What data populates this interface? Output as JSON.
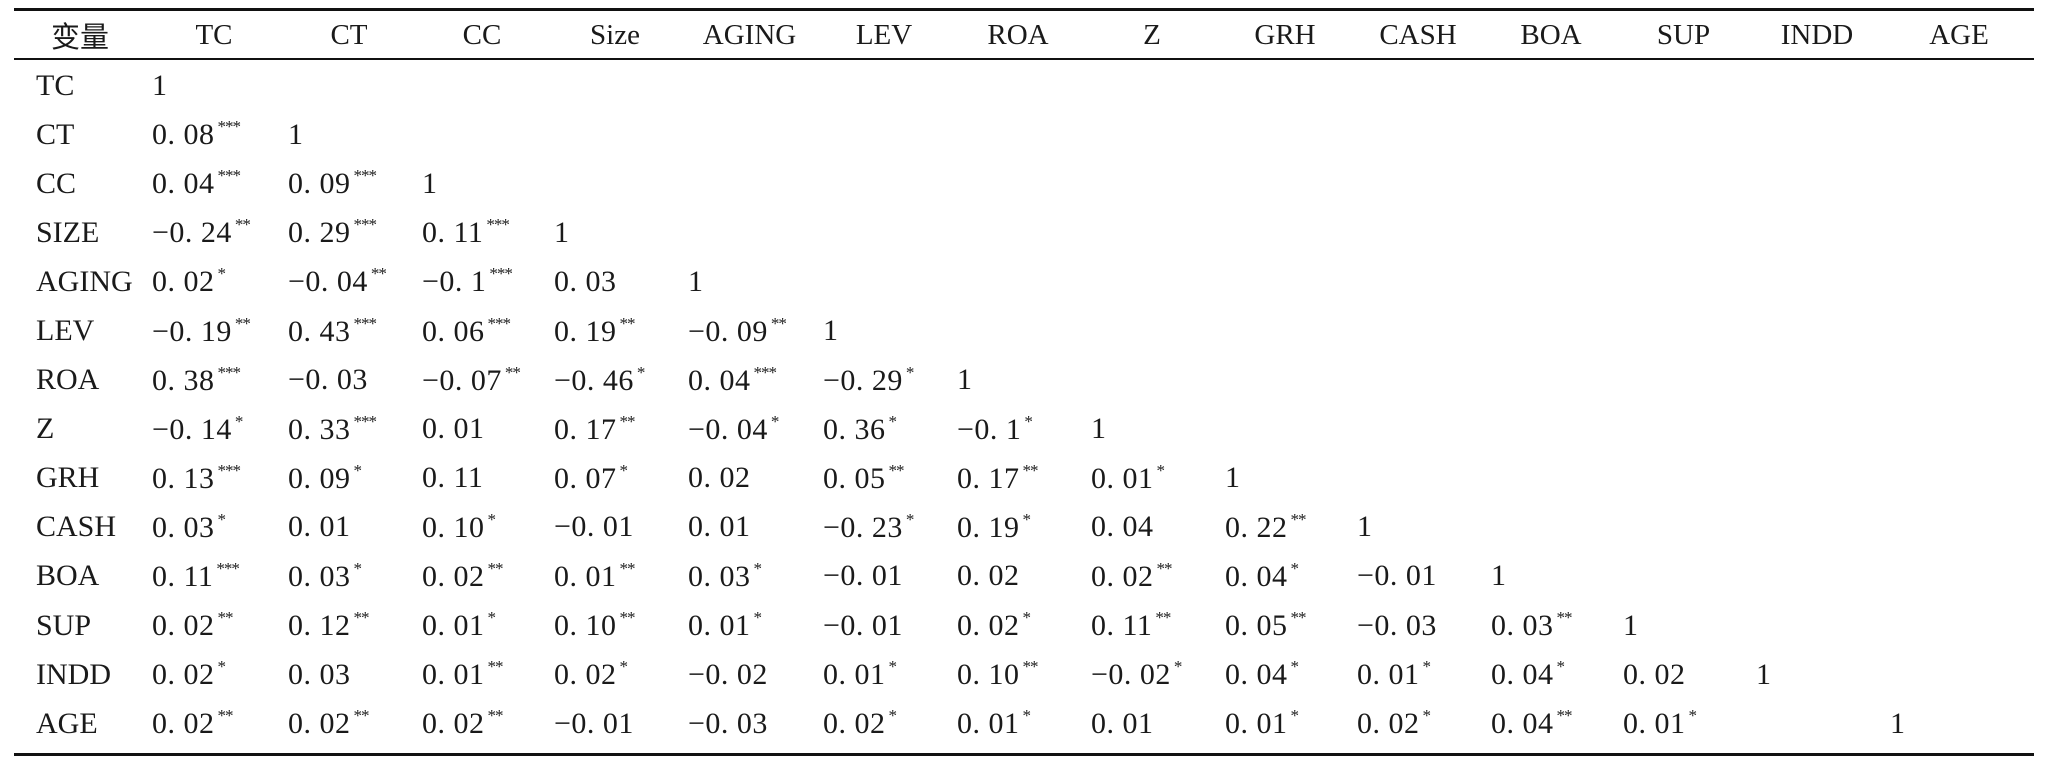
{
  "table": {
    "headers": [
      "变量",
      "TC",
      "CT",
      "CC",
      "Size",
      "AGING",
      "LEV",
      "ROA",
      "Z",
      "GRH",
      "CASH",
      "BOA",
      "SUP",
      "INDD",
      "AGE"
    ],
    "rows": [
      {
        "label": "TC",
        "cells": [
          {
            "v": "1",
            "s": ""
          }
        ]
      },
      {
        "label": "CT",
        "cells": [
          {
            "v": "0. 08",
            "s": "***"
          },
          {
            "v": "1",
            "s": ""
          }
        ]
      },
      {
        "label": "CC",
        "cells": [
          {
            "v": "0. 04",
            "s": "***"
          },
          {
            "v": "0. 09",
            "s": "***"
          },
          {
            "v": "1",
            "s": ""
          }
        ]
      },
      {
        "label": "SIZE",
        "cells": [
          {
            "v": "−0. 24",
            "s": "**"
          },
          {
            "v": "0. 29",
            "s": "***"
          },
          {
            "v": "0. 11",
            "s": "***"
          },
          {
            "v": "1",
            "s": ""
          }
        ]
      },
      {
        "label": "AGING",
        "cells": [
          {
            "v": "0. 02",
            "s": "*"
          },
          {
            "v": "−0. 04",
            "s": "**"
          },
          {
            "v": "−0. 1",
            "s": "***"
          },
          {
            "v": "0. 03",
            "s": ""
          },
          {
            "v": "1",
            "s": ""
          }
        ]
      },
      {
        "label": "LEV",
        "cells": [
          {
            "v": "−0. 19",
            "s": "**"
          },
          {
            "v": "0. 43",
            "s": "***"
          },
          {
            "v": "0. 06",
            "s": "***"
          },
          {
            "v": "0. 19",
            "s": "**"
          },
          {
            "v": "−0. 09",
            "s": "**"
          },
          {
            "v": "1",
            "s": ""
          }
        ]
      },
      {
        "label": "ROA",
        "cells": [
          {
            "v": "0. 38",
            "s": "***"
          },
          {
            "v": "−0. 03",
            "s": ""
          },
          {
            "v": "−0. 07",
            "s": "**"
          },
          {
            "v": "−0. 46",
            "s": "*"
          },
          {
            "v": "0. 04",
            "s": "***"
          },
          {
            "v": "−0. 29",
            "s": "*"
          },
          {
            "v": "1",
            "s": ""
          }
        ]
      },
      {
        "label": "Z",
        "cells": [
          {
            "v": "−0. 14",
            "s": "*"
          },
          {
            "v": "0. 33",
            "s": "***"
          },
          {
            "v": "0. 01",
            "s": ""
          },
          {
            "v": "0. 17",
            "s": "**"
          },
          {
            "v": "−0. 04",
            "s": "*"
          },
          {
            "v": "0. 36",
            "s": "*"
          },
          {
            "v": "−0. 1",
            "s": "*"
          },
          {
            "v": "1",
            "s": ""
          }
        ]
      },
      {
        "label": "GRH",
        "cells": [
          {
            "v": "0. 13",
            "s": "***"
          },
          {
            "v": "0. 09",
            "s": "*"
          },
          {
            "v": "0. 11",
            "s": ""
          },
          {
            "v": "0. 07",
            "s": "*"
          },
          {
            "v": "0. 02",
            "s": ""
          },
          {
            "v": "0. 05",
            "s": "**"
          },
          {
            "v": "0. 17",
            "s": "**"
          },
          {
            "v": "0. 01",
            "s": "*"
          },
          {
            "v": "1",
            "s": ""
          }
        ]
      },
      {
        "label": "CASH",
        "cells": [
          {
            "v": "0. 03",
            "s": "*"
          },
          {
            "v": "0. 01",
            "s": ""
          },
          {
            "v": "0. 10",
            "s": "*"
          },
          {
            "v": "−0. 01",
            "s": ""
          },
          {
            "v": "0. 01",
            "s": ""
          },
          {
            "v": "−0. 23",
            "s": "*"
          },
          {
            "v": "0. 19",
            "s": "*"
          },
          {
            "v": "0. 04",
            "s": ""
          },
          {
            "v": "0. 22",
            "s": "**"
          },
          {
            "v": "1",
            "s": ""
          }
        ]
      },
      {
        "label": "BOA",
        "cells": [
          {
            "v": "0. 11",
            "s": "***"
          },
          {
            "v": "0. 03",
            "s": "*"
          },
          {
            "v": "0. 02",
            "s": "**"
          },
          {
            "v": "0. 01",
            "s": "**"
          },
          {
            "v": "0. 03",
            "s": "*"
          },
          {
            "v": "−0. 01",
            "s": ""
          },
          {
            "v": "0. 02",
            "s": ""
          },
          {
            "v": "0. 02",
            "s": "**"
          },
          {
            "v": "0. 04",
            "s": "*"
          },
          {
            "v": "−0. 01",
            "s": ""
          },
          {
            "v": "1",
            "s": ""
          }
        ]
      },
      {
        "label": "SUP",
        "cells": [
          {
            "v": "0. 02",
            "s": "**"
          },
          {
            "v": "0. 12",
            "s": "**"
          },
          {
            "v": "0. 01",
            "s": "*"
          },
          {
            "v": "0. 10",
            "s": "**"
          },
          {
            "v": "0. 01",
            "s": "*"
          },
          {
            "v": "−0. 01",
            "s": ""
          },
          {
            "v": "0. 02",
            "s": "*"
          },
          {
            "v": "0. 11",
            "s": "**"
          },
          {
            "v": "0. 05",
            "s": "**"
          },
          {
            "v": "−0. 03",
            "s": ""
          },
          {
            "v": "0. 03",
            "s": "**"
          },
          {
            "v": "1",
            "s": ""
          }
        ]
      },
      {
        "label": "INDD",
        "cells": [
          {
            "v": "0. 02",
            "s": "*"
          },
          {
            "v": "0. 03",
            "s": ""
          },
          {
            "v": "0. 01",
            "s": "**"
          },
          {
            "v": "0. 02",
            "s": "*"
          },
          {
            "v": "−0. 02",
            "s": ""
          },
          {
            "v": "0. 01",
            "s": "*"
          },
          {
            "v": "0. 10",
            "s": "**"
          },
          {
            "v": "−0. 02",
            "s": "*"
          },
          {
            "v": "0. 04",
            "s": "*"
          },
          {
            "v": "0. 01",
            "s": "*"
          },
          {
            "v": "0. 04",
            "s": "*"
          },
          {
            "v": "0. 02",
            "s": ""
          },
          {
            "v": "1",
            "s": ""
          }
        ]
      },
      {
        "label": "AGE",
        "cells": [
          {
            "v": "0. 02",
            "s": "**"
          },
          {
            "v": "0. 02",
            "s": "**"
          },
          {
            "v": "0. 02",
            "s": "**"
          },
          {
            "v": "−0. 01",
            "s": ""
          },
          {
            "v": "−0. 03",
            "s": ""
          },
          {
            "v": "0. 02",
            "s": "*"
          },
          {
            "v": "0. 01",
            "s": "*"
          },
          {
            "v": "0. 01",
            "s": ""
          },
          {
            "v": "0. 01",
            "s": "*"
          },
          {
            "v": "0. 02",
            "s": "*"
          },
          {
            "v": "0. 04",
            "s": "**"
          },
          {
            "v": "0. 01",
            "s": "*"
          },
          {
            "v": "",
            "s": ""
          },
          {
            "v": "1",
            "s": ""
          }
        ]
      }
    ]
  }
}
